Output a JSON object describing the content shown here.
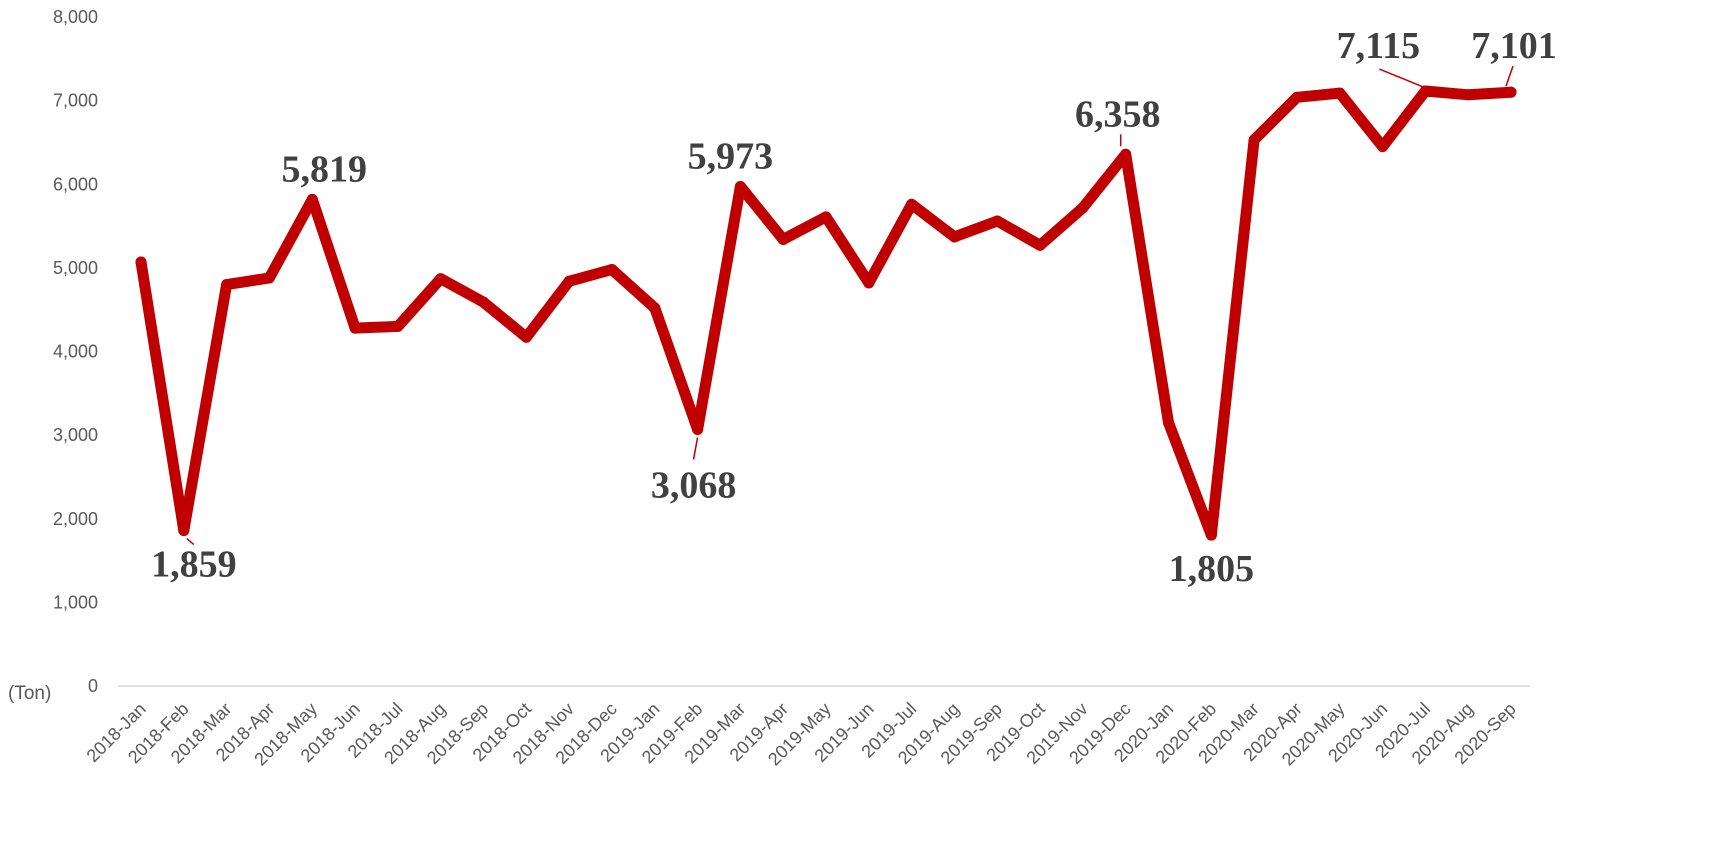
{
  "chart_data": {
    "type": "line",
    "title": "",
    "xlabel": "",
    "ylabel": "(Ton)",
    "ylim": [
      0,
      8000
    ],
    "y_ticks": [
      "0",
      "1,000",
      "2,000",
      "3,000",
      "4,000",
      "5,000",
      "6,000",
      "7,000",
      "8,000"
    ],
    "y_tick_values": [
      0,
      1000,
      2000,
      3000,
      4000,
      5000,
      6000,
      7000,
      8000
    ],
    "grid": false,
    "legend": "none",
    "line_color": "#c00000",
    "categories": [
      "2018-Jan",
      "2018-Feb",
      "2018-Mar",
      "2018-Apr",
      "2018-May",
      "2018-Jun",
      "2018-Jul",
      "2018-Aug",
      "2018-Sep",
      "2018-Oct",
      "2018-Nov",
      "2018-Dec",
      "2019-Jan",
      "2019-Feb",
      "2019-Mar",
      "2019-Apr",
      "2019-May",
      "2019-Jun",
      "2019-Jul",
      "2019-Aug",
      "2019-Sep",
      "2019-Oct",
      "2019-Nov",
      "2019-Dec",
      "2020-Jan",
      "2020-Feb",
      "2020-Mar",
      "2020-Apr",
      "2020-May",
      "2020-Jun",
      "2020-Jul",
      "2020-Aug",
      "2020-Sep"
    ],
    "series": [
      {
        "values": [
          5070,
          1859,
          4800,
          4880,
          5819,
          4280,
          4300,
          4870,
          4590,
          4170,
          4840,
          4980,
          4520,
          3068,
          5973,
          5340,
          5610,
          4820,
          5760,
          5370,
          5560,
          5270,
          5720,
          6358,
          3150,
          1805,
          6530,
          7040,
          7090,
          6450,
          7115,
          7070,
          7101
        ]
      }
    ],
    "annotations": [
      {
        "index": 1,
        "text": "1,859"
      },
      {
        "index": 4,
        "text": "5,819"
      },
      {
        "index": 13,
        "text": "3,068"
      },
      {
        "index": 14,
        "text": "5,973"
      },
      {
        "index": 23,
        "text": "6,358"
      },
      {
        "index": 25,
        "text": "1,805"
      },
      {
        "index": 30,
        "text": "7,115"
      },
      {
        "index": 32,
        "text": "7,101"
      }
    ]
  }
}
